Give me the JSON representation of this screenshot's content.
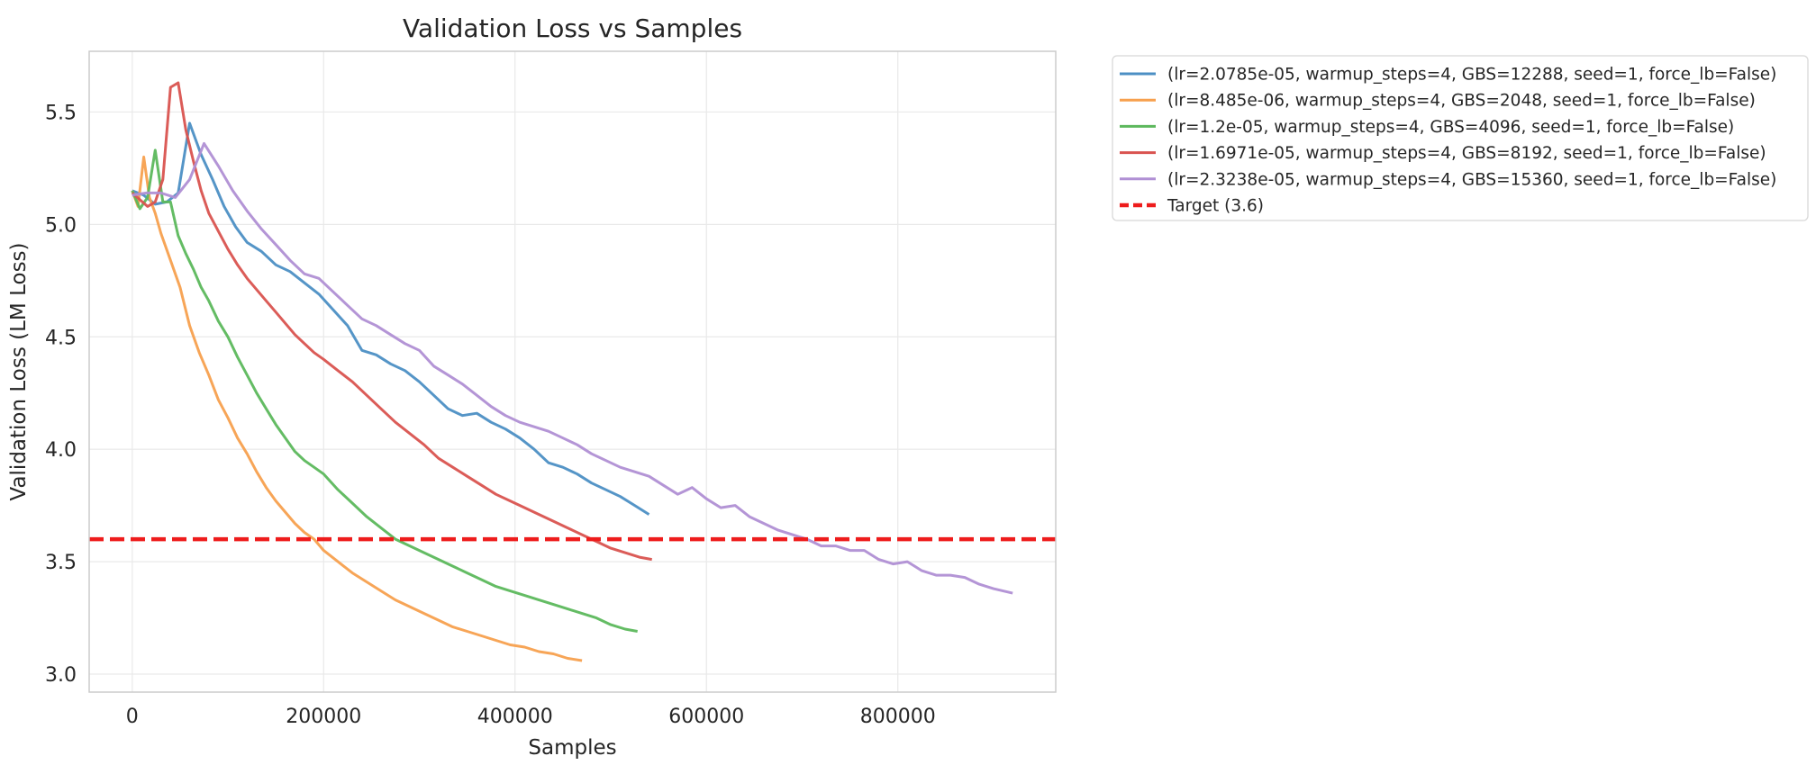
{
  "chart_data": {
    "type": "line",
    "title": "Validation Loss vs Samples",
    "xlabel": "Samples",
    "ylabel": "Validation Loss (LM Loss)",
    "xlim": [
      -45000,
      965000
    ],
    "ylim": [
      2.92,
      5.77
    ],
    "xticks": [
      0,
      200000,
      400000,
      600000,
      800000
    ],
    "xtick_labels": [
      "0",
      "200000",
      "400000",
      "600000",
      "800000"
    ],
    "yticks": [
      3.0,
      3.5,
      4.0,
      4.5,
      5.0,
      5.5
    ],
    "ytick_labels": [
      "3.0",
      "3.5",
      "4.0",
      "4.5",
      "5.0",
      "5.5"
    ],
    "grid": true,
    "legend_position": "outside-right-top",
    "series": [
      {
        "name": "(lr=2.0785e-05, warmup_steps=4, GBS=12288, seed=1, force_lb=False)",
        "color": "#4c8fc4",
        "x": [
          0,
          12000,
          24000,
          36000,
          48000,
          60000,
          72000,
          84000,
          96000,
          108000,
          120000,
          135000,
          150000,
          165000,
          180000,
          195000,
          210000,
          225000,
          240000,
          255000,
          270000,
          285000,
          300000,
          315000,
          330000,
          345000,
          360000,
          375000,
          390000,
          405000,
          420000,
          435000,
          450000,
          465000,
          480000,
          495000,
          510000,
          525000,
          540000
        ],
        "y": [
          5.15,
          5.13,
          5.09,
          5.1,
          5.14,
          5.45,
          5.31,
          5.2,
          5.08,
          4.99,
          4.92,
          4.88,
          4.82,
          4.79,
          4.74,
          4.69,
          4.62,
          4.55,
          4.44,
          4.42,
          4.38,
          4.35,
          4.3,
          4.24,
          4.18,
          4.15,
          4.16,
          4.12,
          4.09,
          4.05,
          4.0,
          3.94,
          3.92,
          3.89,
          3.85,
          3.82,
          3.79,
          3.75,
          3.71
        ]
      },
      {
        "name": "(lr=8.485e-06, warmup_steps=4, GBS=2048, seed=1, force_lb=False)",
        "color": "#f7a04e",
        "x": [
          0,
          6000,
          12000,
          18000,
          24000,
          30000,
          40000,
          50000,
          60000,
          70000,
          80000,
          90000,
          100000,
          110000,
          120000,
          130000,
          140000,
          150000,
          160000,
          170000,
          180000,
          190000,
          200000,
          215000,
          230000,
          245000,
          260000,
          275000,
          290000,
          305000,
          320000,
          335000,
          350000,
          365000,
          380000,
          395000,
          410000,
          425000,
          440000,
          455000,
          470000
        ],
        "y": [
          5.15,
          5.08,
          5.3,
          5.12,
          5.05,
          4.96,
          4.84,
          4.72,
          4.55,
          4.43,
          4.33,
          4.22,
          4.14,
          4.05,
          3.98,
          3.9,
          3.83,
          3.77,
          3.72,
          3.67,
          3.63,
          3.6,
          3.55,
          3.5,
          3.45,
          3.41,
          3.37,
          3.33,
          3.3,
          3.27,
          3.24,
          3.21,
          3.19,
          3.17,
          3.15,
          3.13,
          3.12,
          3.1,
          3.09,
          3.07,
          3.06
        ]
      },
      {
        "name": "(lr=1.2e-05, warmup_steps=4, GBS=4096, seed=1, force_lb=False)",
        "color": "#5cb85c",
        "x": [
          0,
          8000,
          16000,
          24000,
          32000,
          40000,
          48000,
          56000,
          64000,
          72000,
          80000,
          90000,
          100000,
          110000,
          120000,
          130000,
          140000,
          150000,
          160000,
          170000,
          180000,
          190000,
          200000,
          215000,
          230000,
          245000,
          260000,
          275000,
          290000,
          305000,
          320000,
          335000,
          350000,
          365000,
          380000,
          395000,
          410000,
          425000,
          440000,
          455000,
          470000,
          485000,
          500000,
          515000,
          528000
        ],
        "y": [
          5.15,
          5.07,
          5.12,
          5.33,
          5.1,
          5.1,
          4.95,
          4.87,
          4.8,
          4.72,
          4.66,
          4.57,
          4.5,
          4.41,
          4.33,
          4.25,
          4.18,
          4.11,
          4.05,
          3.99,
          3.95,
          3.92,
          3.89,
          3.82,
          3.76,
          3.7,
          3.65,
          3.6,
          3.57,
          3.54,
          3.51,
          3.48,
          3.45,
          3.42,
          3.39,
          3.37,
          3.35,
          3.33,
          3.31,
          3.29,
          3.27,
          3.25,
          3.22,
          3.2,
          3.19
        ]
      },
      {
        "name": "(lr=1.6971e-05, warmup_steps=4, GBS=8192, seed=1, force_lb=False)",
        "color": "#d9534f",
        "x": [
          0,
          8000,
          16000,
          24000,
          32000,
          40000,
          48000,
          56000,
          64000,
          72000,
          80000,
          90000,
          100000,
          110000,
          120000,
          130000,
          140000,
          150000,
          160000,
          170000,
          180000,
          190000,
          200000,
          215000,
          230000,
          245000,
          260000,
          275000,
          290000,
          305000,
          320000,
          335000,
          350000,
          365000,
          380000,
          395000,
          410000,
          425000,
          440000,
          455000,
          470000,
          485000,
          500000,
          515000,
          530000,
          543000
        ],
        "y": [
          5.14,
          5.11,
          5.08,
          5.1,
          5.2,
          5.61,
          5.63,
          5.42,
          5.28,
          5.15,
          5.05,
          4.97,
          4.89,
          4.82,
          4.76,
          4.71,
          4.66,
          4.61,
          4.56,
          4.51,
          4.47,
          4.43,
          4.4,
          4.35,
          4.3,
          4.24,
          4.18,
          4.12,
          4.07,
          4.02,
          3.96,
          3.92,
          3.88,
          3.84,
          3.8,
          3.77,
          3.74,
          3.71,
          3.68,
          3.65,
          3.62,
          3.59,
          3.56,
          3.54,
          3.52,
          3.51
        ]
      },
      {
        "name": "(lr=2.3238e-05, warmup_steps=4, GBS=15360, seed=1, force_lb=False)",
        "color": "#b08fd4",
        "x": [
          0,
          15000,
          30000,
          45000,
          60000,
          75000,
          90000,
          105000,
          120000,
          135000,
          150000,
          165000,
          180000,
          195000,
          210000,
          225000,
          240000,
          255000,
          270000,
          285000,
          300000,
          315000,
          330000,
          345000,
          360000,
          375000,
          390000,
          405000,
          420000,
          435000,
          450000,
          465000,
          480000,
          495000,
          510000,
          525000,
          540000,
          555000,
          570000,
          585000,
          600000,
          615000,
          630000,
          645000,
          660000,
          675000,
          690000,
          705000,
          720000,
          735000,
          750000,
          765000,
          780000,
          795000,
          810000,
          825000,
          840000,
          855000,
          870000,
          885000,
          900000,
          920000
        ],
        "y": [
          5.13,
          5.14,
          5.14,
          5.12,
          5.2,
          5.36,
          5.26,
          5.15,
          5.06,
          4.98,
          4.91,
          4.84,
          4.78,
          4.76,
          4.7,
          4.64,
          4.58,
          4.55,
          4.51,
          4.47,
          4.44,
          4.37,
          4.33,
          4.29,
          4.24,
          4.19,
          4.15,
          4.12,
          4.1,
          4.08,
          4.05,
          4.02,
          3.98,
          3.95,
          3.92,
          3.9,
          3.88,
          3.84,
          3.8,
          3.83,
          3.78,
          3.74,
          3.75,
          3.7,
          3.67,
          3.64,
          3.62,
          3.6,
          3.57,
          3.57,
          3.55,
          3.55,
          3.51,
          3.49,
          3.5,
          3.46,
          3.44,
          3.44,
          3.43,
          3.4,
          3.38,
          3.36
        ]
      },
      {
        "name": "Target (3.6)",
        "color": "#ee1c1c",
        "style": "dashed",
        "x": [
          -45000,
          965000
        ],
        "y": [
          3.6,
          3.6
        ]
      }
    ]
  }
}
